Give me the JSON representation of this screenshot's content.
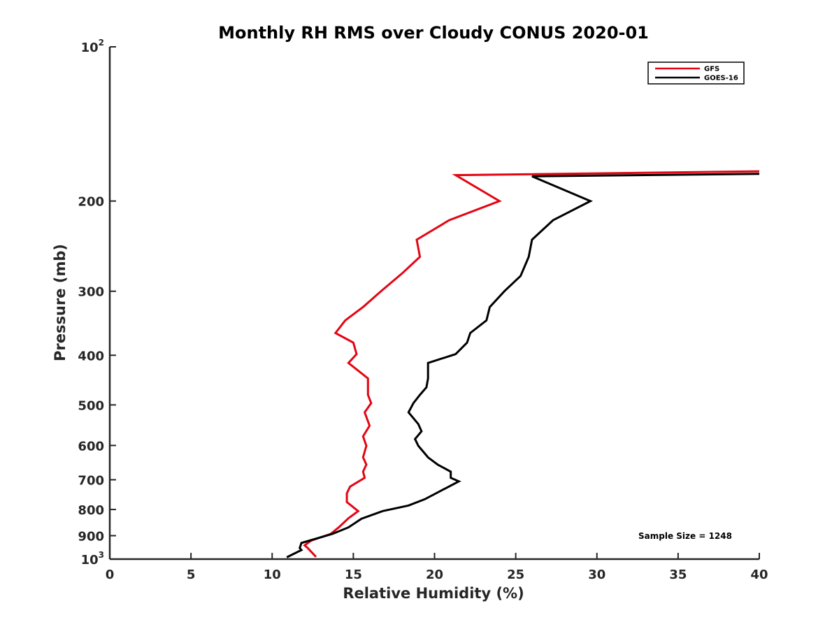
{
  "chart_data": {
    "type": "line",
    "title": "Monthly RH RMS over Cloudy CONUS  2020-01",
    "xlabel": "Relative Humidity (%)",
    "ylabel": "Pressure (mb)",
    "xlim": [
      0,
      40
    ],
    "ylim": [
      100,
      1000
    ],
    "y_scale": "log",
    "y_reversed": true,
    "x_ticks": [
      0,
      5,
      10,
      15,
      20,
      25,
      30,
      35,
      40
    ],
    "y_ticks": [
      {
        "value": 100,
        "base": "10",
        "exp": "2"
      },
      {
        "value": 200,
        "label": "200"
      },
      {
        "value": 300,
        "label": "300"
      },
      {
        "value": 400,
        "label": "400"
      },
      {
        "value": 500,
        "label": "500"
      },
      {
        "value": 600,
        "label": "600"
      },
      {
        "value": 700,
        "label": "700"
      },
      {
        "value": 800,
        "label": "800"
      },
      {
        "value": 900,
        "label": "900"
      },
      {
        "value": 1000,
        "base": "10",
        "exp": "3"
      }
    ],
    "grid": false,
    "legend_position": "top-right",
    "annotation": "Sample Size = 1248",
    "series": [
      {
        "name": "GFS",
        "color": "#e30613",
        "points": [
          [
            40,
            175
          ],
          [
            21.3,
            178
          ],
          [
            24.0,
            200
          ],
          [
            20.9,
            218
          ],
          [
            18.9,
            238
          ],
          [
            19.1,
            257
          ],
          [
            18.0,
            277
          ],
          [
            16.7,
            300
          ],
          [
            15.6,
            322
          ],
          [
            14.5,
            342
          ],
          [
            13.9,
            362
          ],
          [
            15.0,
            378
          ],
          [
            15.2,
            398
          ],
          [
            14.7,
            414
          ],
          [
            15.9,
            444
          ],
          [
            15.9,
            478
          ],
          [
            16.1,
            496
          ],
          [
            15.7,
            517
          ],
          [
            16.0,
            549
          ],
          [
            15.6,
            576
          ],
          [
            15.8,
            601
          ],
          [
            15.6,
            633
          ],
          [
            15.8,
            654
          ],
          [
            15.6,
            675
          ],
          [
            15.7,
            694
          ],
          [
            14.8,
            722
          ],
          [
            14.6,
            744
          ],
          [
            14.6,
            774
          ],
          [
            15.3,
            806
          ],
          [
            14.7,
            832
          ],
          [
            14.1,
            867
          ],
          [
            13.6,
            893
          ],
          [
            12.4,
            920
          ],
          [
            12.0,
            940
          ],
          [
            12.2,
            952
          ],
          [
            12.7,
            990
          ]
        ]
      },
      {
        "name": "GOES-16",
        "color": "#000000",
        "points": [
          [
            40,
            177
          ],
          [
            26.0,
            179
          ],
          [
            29.6,
            200
          ],
          [
            27.3,
            218
          ],
          [
            26.0,
            238
          ],
          [
            25.8,
            257
          ],
          [
            25.3,
            280
          ],
          [
            24.3,
            300
          ],
          [
            23.4,
            322
          ],
          [
            23.2,
            342
          ],
          [
            22.2,
            362
          ],
          [
            22.0,
            378
          ],
          [
            21.3,
            398
          ],
          [
            19.6,
            414
          ],
          [
            19.6,
            444
          ],
          [
            19.5,
            462
          ],
          [
            19.1,
            478
          ],
          [
            18.7,
            496
          ],
          [
            18.4,
            517
          ],
          [
            19.0,
            545
          ],
          [
            19.2,
            563
          ],
          [
            18.8,
            583
          ],
          [
            19.0,
            601
          ],
          [
            19.6,
            633
          ],
          [
            20.2,
            654
          ],
          [
            21.0,
            675
          ],
          [
            21.0,
            694
          ],
          [
            21.5,
            705
          ],
          [
            20.3,
            738
          ],
          [
            19.4,
            764
          ],
          [
            18.4,
            786
          ],
          [
            16.8,
            806
          ],
          [
            15.5,
            834
          ],
          [
            14.7,
            867
          ],
          [
            13.7,
            893
          ],
          [
            11.8,
            930
          ],
          [
            11.7,
            952
          ],
          [
            11.8,
            960
          ],
          [
            10.9,
            992
          ]
        ]
      }
    ]
  }
}
